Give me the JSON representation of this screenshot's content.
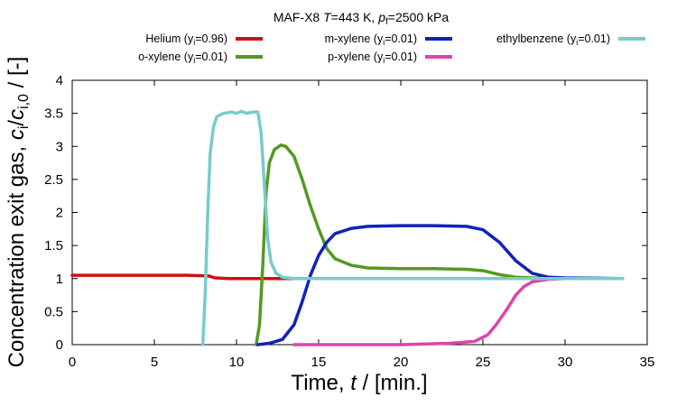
{
  "chart_data": {
    "type": "line",
    "title": {
      "prefix": "MAF-X8 ",
      "T_symbol": "T",
      "T_value": "=443 K, ",
      "p_symbol": "p",
      "p_sub": "f",
      "p_value": "=2500 kPa"
    },
    "xlabel": {
      "text": "Time, ",
      "italic": "t",
      "unit": " / [min.]"
    },
    "ylabel": {
      "text": "Concentration exit gas, ",
      "c1": "c",
      "c1_sub": "i",
      "slash": "/",
      "c2": "c",
      "c2_sub": "i,0",
      "unit": " / [-]"
    },
    "xlim": [
      0,
      35
    ],
    "ylim": [
      0,
      4
    ],
    "xticks": [
      "0",
      "5",
      "10",
      "15",
      "20",
      "25",
      "30",
      "35"
    ],
    "xtick_values": [
      0,
      5,
      10,
      15,
      20,
      25,
      30,
      35
    ],
    "yticks": [
      "0",
      "0.5",
      "1",
      "1.5",
      "2",
      "2.5",
      "3",
      "3.5",
      "4"
    ],
    "ytick_values": [
      0,
      0.5,
      1,
      1.5,
      2,
      2.5,
      3,
      3.5,
      4
    ],
    "grid": false,
    "legend_position": "top",
    "series": [
      {
        "key": "helium",
        "name": "Helium (y",
        "name_sub": "i",
        "name_end": "=0.96)",
        "color": "#cc1111",
        "points": [
          [
            0,
            1.05
          ],
          [
            4,
            1.05
          ],
          [
            7,
            1.05
          ],
          [
            8.3,
            1.04
          ],
          [
            8.7,
            1.01
          ],
          [
            9.5,
            1.0
          ],
          [
            12,
            1.0
          ],
          [
            20,
            1.0
          ],
          [
            33.5,
            1.0
          ]
        ]
      },
      {
        "key": "o-xylene",
        "name": "o-xylene (y",
        "name_sub": "i",
        "name_end": "=0.01)",
        "color": "#559922",
        "points": [
          [
            11.2,
            0
          ],
          [
            11.4,
            0.3
          ],
          [
            11.6,
            1.2
          ],
          [
            11.8,
            2.3
          ],
          [
            12.0,
            2.75
          ],
          [
            12.3,
            2.95
          ],
          [
            12.7,
            3.02
          ],
          [
            13.0,
            3.0
          ],
          [
            13.5,
            2.85
          ],
          [
            14.0,
            2.5
          ],
          [
            14.5,
            2.1
          ],
          [
            15.0,
            1.75
          ],
          [
            15.5,
            1.45
          ],
          [
            16.0,
            1.3
          ],
          [
            17.0,
            1.2
          ],
          [
            18.0,
            1.16
          ],
          [
            20.0,
            1.15
          ],
          [
            22.0,
            1.15
          ],
          [
            24.0,
            1.14
          ],
          [
            25.0,
            1.12
          ],
          [
            26.0,
            1.06
          ],
          [
            27.0,
            1.02
          ],
          [
            28.0,
            1.01
          ],
          [
            33.5,
            1.0
          ]
        ]
      },
      {
        "key": "m-xylene",
        "name": "m-xylene (y",
        "name_sub": "i",
        "name_end": "=0.01)",
        "color": "#1122bb",
        "points": [
          [
            11.3,
            0
          ],
          [
            12.0,
            0.02
          ],
          [
            12.8,
            0.08
          ],
          [
            13.5,
            0.3
          ],
          [
            14.0,
            0.65
          ],
          [
            14.5,
            1.05
          ],
          [
            15.0,
            1.35
          ],
          [
            15.5,
            1.55
          ],
          [
            16.0,
            1.68
          ],
          [
            17.0,
            1.76
          ],
          [
            18.0,
            1.79
          ],
          [
            20.0,
            1.8
          ],
          [
            22.0,
            1.8
          ],
          [
            24.0,
            1.79
          ],
          [
            25.0,
            1.74
          ],
          [
            26.0,
            1.55
          ],
          [
            27.0,
            1.27
          ],
          [
            28.0,
            1.08
          ],
          [
            29.0,
            1.02
          ],
          [
            30.0,
            1.01
          ],
          [
            33.5,
            1.0
          ]
        ]
      },
      {
        "key": "p-xylene",
        "name": "p-xylene (y",
        "name_sub": "i",
        "name_end": "=0.01)",
        "color": "#dd44aa",
        "points": [
          [
            13.5,
            0
          ],
          [
            20.0,
            0
          ],
          [
            23.0,
            0.02
          ],
          [
            24.5,
            0.05
          ],
          [
            25.3,
            0.15
          ],
          [
            25.8,
            0.3
          ],
          [
            26.5,
            0.55
          ],
          [
            27.0,
            0.75
          ],
          [
            27.5,
            0.88
          ],
          [
            28.0,
            0.95
          ],
          [
            29.0,
            0.99
          ],
          [
            30.0,
            1.0
          ],
          [
            33.5,
            1.0
          ]
        ]
      },
      {
        "key": "ethylbenzene",
        "name": "ethylbenzene (y",
        "name_sub": "i",
        "name_end": "=0.01)",
        "color": "#77cccc",
        "points": [
          [
            7.95,
            0
          ],
          [
            8.1,
            0.8
          ],
          [
            8.25,
            2.0
          ],
          [
            8.4,
            2.9
          ],
          [
            8.6,
            3.3
          ],
          [
            8.8,
            3.45
          ],
          [
            9.2,
            3.5
          ],
          [
            9.7,
            3.52
          ],
          [
            10.0,
            3.5
          ],
          [
            10.3,
            3.53
          ],
          [
            10.6,
            3.5
          ],
          [
            11.0,
            3.52
          ],
          [
            11.3,
            3.52
          ],
          [
            11.5,
            3.2
          ],
          [
            11.7,
            2.4
          ],
          [
            11.9,
            1.6
          ],
          [
            12.1,
            1.25
          ],
          [
            12.4,
            1.08
          ],
          [
            12.8,
            1.02
          ],
          [
            13.5,
            1.0
          ],
          [
            33.5,
            1.0
          ]
        ]
      }
    ]
  }
}
